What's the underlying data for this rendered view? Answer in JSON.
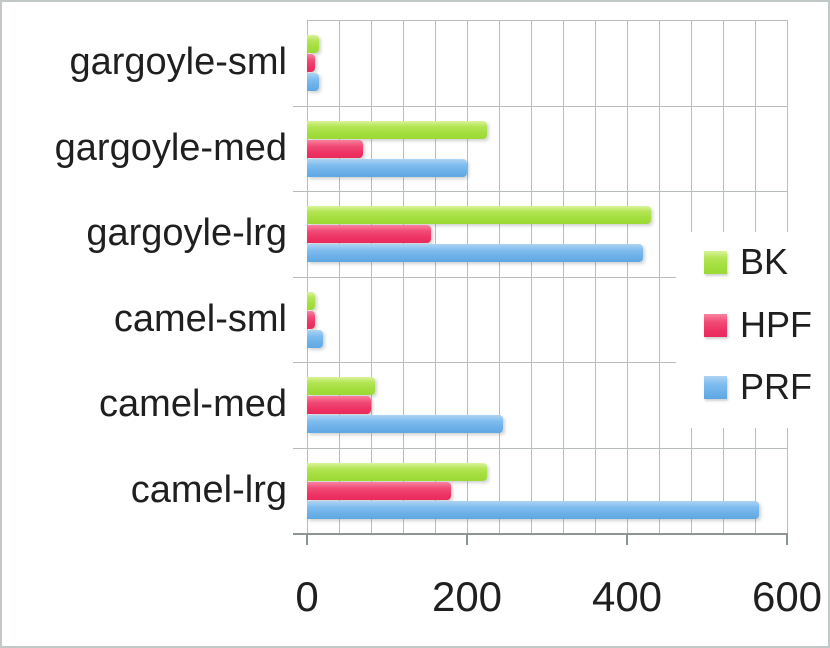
{
  "chart_data": {
    "type": "bar",
    "orientation": "horizontal",
    "title": "",
    "xlabel": "",
    "ylabel": "",
    "categories": [
      "gargoyle-sml",
      "gargoyle-med",
      "gargoyle-lrg",
      "camel-sml",
      "camel-med",
      "camel-lrg"
    ],
    "series": [
      {
        "name": "BK",
        "color": "#a8e04a",
        "values": [
          15,
          225,
          430,
          10,
          85,
          225
        ]
      },
      {
        "name": "HPF",
        "color": "#ee3b68",
        "values": [
          10,
          70,
          155,
          10,
          80,
          180
        ]
      },
      {
        "name": "PRF",
        "color": "#6fb3ea",
        "values": [
          15,
          200,
          420,
          20,
          245,
          565
        ]
      }
    ],
    "xlim": [
      0,
      600
    ],
    "x_tick_values": [
      0,
      200,
      400,
      600
    ],
    "x_tick_labels": [
      "0",
      "200",
      "400",
      "600"
    ],
    "minor_grid_step": 40,
    "grid": true,
    "grid_color": "#b7bdbd",
    "axis_color": "#8d9595",
    "legend_position": "inside-right",
    "background_color": "#ffffff",
    "border_color": "#c2c7c7"
  }
}
